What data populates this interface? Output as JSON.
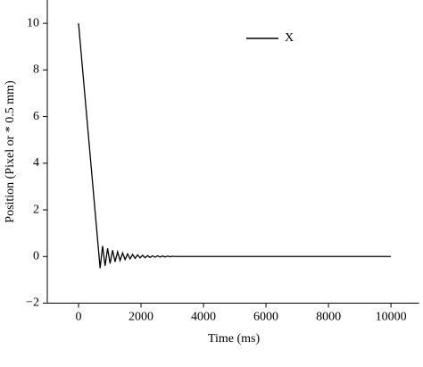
{
  "chart_data": {
    "type": "line",
    "x_label": "Time (ms)",
    "y_label": "Position (Pixel or * 0.5 mm)",
    "x": [
      0,
      690,
      770,
      850,
      930,
      1010,
      1090,
      1170,
      1250,
      1330,
      1410,
      1490,
      1570,
      1650,
      1730,
      1810,
      1890,
      1970,
      2050,
      2130,
      2210,
      2290,
      2370,
      2450,
      2530,
      2610,
      2690,
      2770,
      2850,
      2930,
      3010,
      3100,
      10000
    ],
    "series": [
      {
        "name": "X",
        "color": "#000000",
        "values": [
          10,
          -0.5,
          0.45,
          -0.4,
          0.35,
          -0.3,
          0.27,
          -0.23,
          0.2,
          -0.17,
          0.15,
          -0.13,
          0.11,
          -0.1,
          0.09,
          -0.08,
          0.07,
          -0.06,
          0.05,
          -0.05,
          0.04,
          -0.04,
          0.03,
          -0.03,
          0.03,
          -0.02,
          0.02,
          -0.02,
          0.02,
          -0.01,
          0.01,
          0,
          0
        ]
      }
    ],
    "xlim": [
      -1000,
      10900
    ],
    "ylim": [
      -2,
      11
    ],
    "xticks": [
      0,
      2000,
      4000,
      6000,
      8000,
      10000
    ],
    "yticks": [
      {
        "value": -2,
        "label": "−2"
      },
      0,
      2,
      4,
      6,
      8,
      10
    ],
    "legend": "upper right"
  }
}
